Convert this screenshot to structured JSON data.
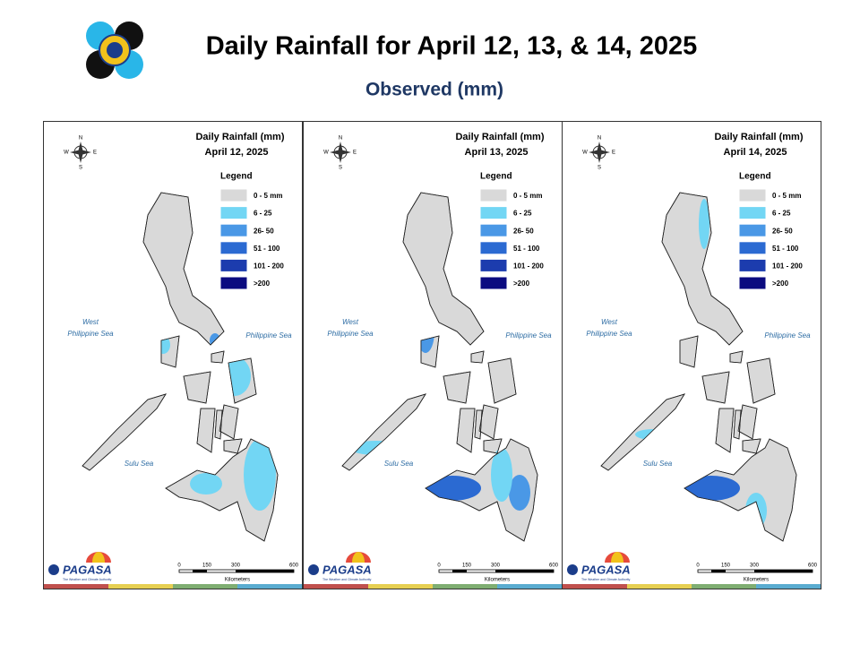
{
  "header": {
    "title": "Daily Rainfall for April 12, 13, & 14, 2025",
    "subtitle": "Observed (mm)"
  },
  "panel_common": {
    "heading": "Daily Rainfall (mm)",
    "legend_title": "Legend",
    "legend": [
      {
        "label": "0 - 5 mm",
        "color": "#d9d9d9"
      },
      {
        "label": "6 - 25",
        "color": "#72d6f4"
      },
      {
        "label": "26- 50",
        "color": "#4a98e6"
      },
      {
        "label": "51 - 100",
        "color": "#2b6ad2"
      },
      {
        "label": "101 - 200",
        "color": "#1c3cae"
      },
      {
        "label": ">200",
        "color": "#0b0b80"
      }
    ],
    "seas": {
      "west_line1": "West",
      "west_line2": "Philippine Sea",
      "east": "Philippine Sea",
      "south": "Sulu Sea"
    },
    "compass": {
      "n": "N",
      "s": "S",
      "e": "E",
      "w": "W"
    },
    "scale": {
      "ticks": [
        "0",
        "150",
        "300",
        "600"
      ],
      "unit": "Kilometers"
    },
    "logo": {
      "name": "PAGASA",
      "tagline": "The Weather and Climate Authority"
    }
  },
  "panels": [
    {
      "date": "April 12, 2025"
    },
    {
      "date": "April 13, 2025"
    },
    {
      "date": "April 14, 2025"
    }
  ]
}
